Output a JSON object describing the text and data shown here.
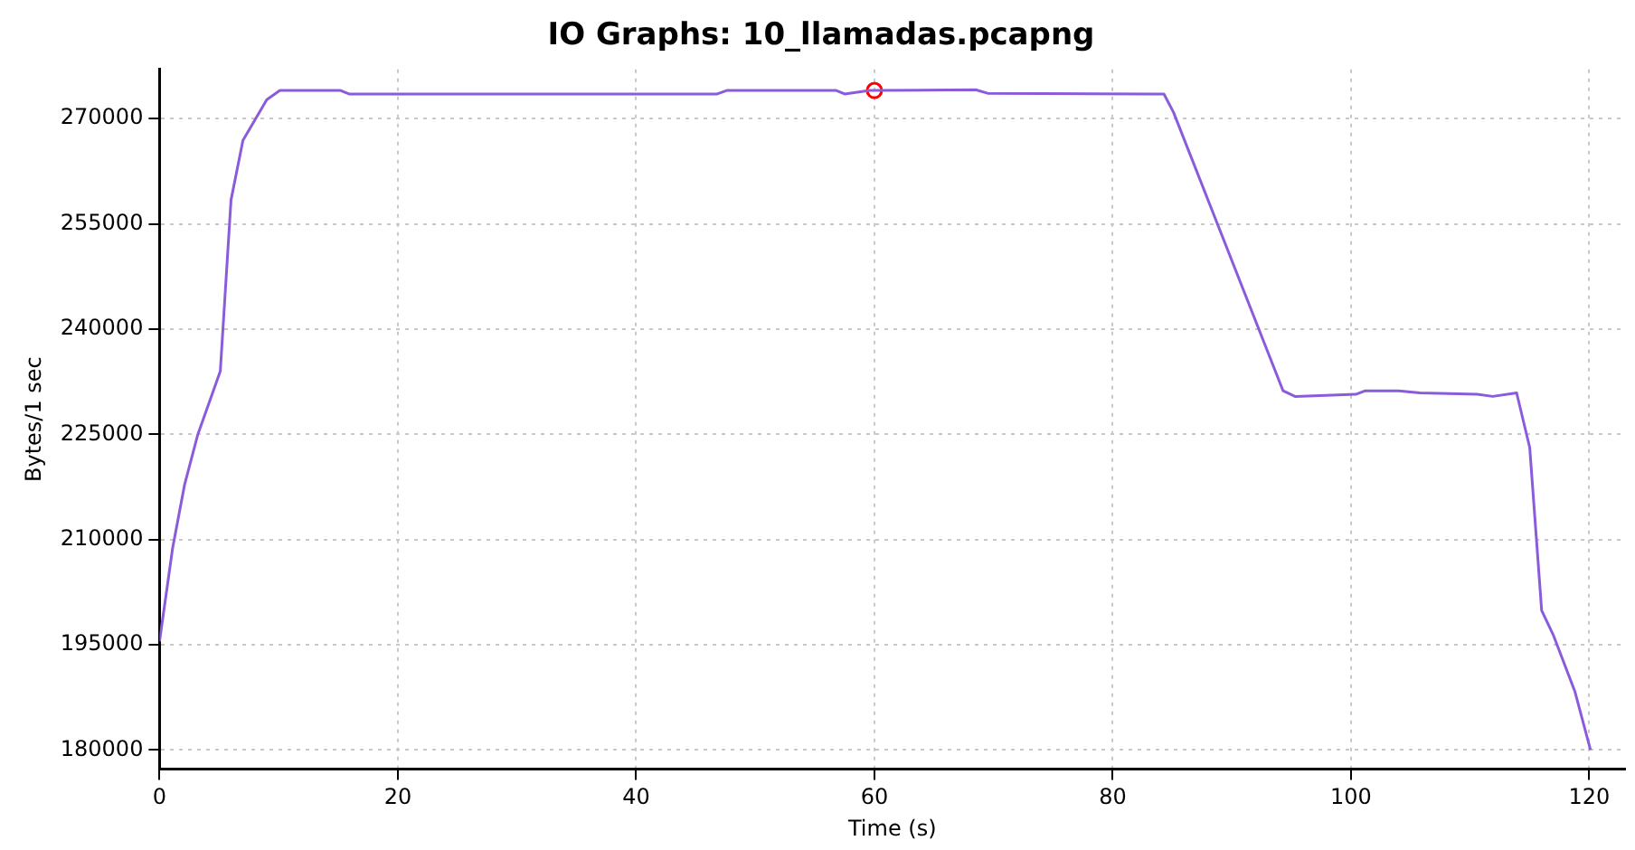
{
  "chart_data": {
    "type": "line",
    "title": "IO Graphs: 10_llamadas.pcapng",
    "xlabel": "Time (s)",
    "ylabel": "Bytes/1 sec",
    "xlim": [
      0,
      123
    ],
    "xticks": [
      0,
      20,
      40,
      60,
      80,
      100,
      120
    ],
    "ylim": [
      177300,
      277000
    ],
    "yticks": [
      180000,
      195000,
      210000,
      225000,
      240000,
      255000,
      270000
    ],
    "grid": true,
    "line_style": "solid",
    "series": [
      {
        "marker": "none",
        "color": "#8a5cdc",
        "x": [
          0,
          1.1,
          2.1,
          3.2,
          5.1,
          6,
          7,
          9,
          10.1,
          15.2,
          15.9,
          34.8,
          46.8,
          47.6,
          56.8,
          57.5,
          59.6,
          68.5,
          69.5,
          84.3,
          85.1,
          94.3,
          95.3,
          100.4,
          101.2,
          104,
          105.8,
          110.6,
          111.9,
          113.9,
          115,
          116,
          117,
          118.8,
          120.1
        ],
        "values": [
          195500,
          208800,
          217800,
          224900,
          234000,
          258400,
          266900,
          272700,
          274000,
          274000,
          273500,
          273500,
          273500,
          274000,
          274000,
          273500,
          274000,
          274100,
          273600,
          273500,
          270900,
          231200,
          230400,
          230700,
          231200,
          231200,
          230900,
          230700,
          230400,
          230900,
          223100,
          199900,
          196300,
          188300,
          180000
        ]
      },
      {
        "type": "scatter",
        "marker": "circle",
        "color": "#ff0000",
        "x": [
          60
        ],
        "values": [
          274000
        ]
      }
    ]
  }
}
